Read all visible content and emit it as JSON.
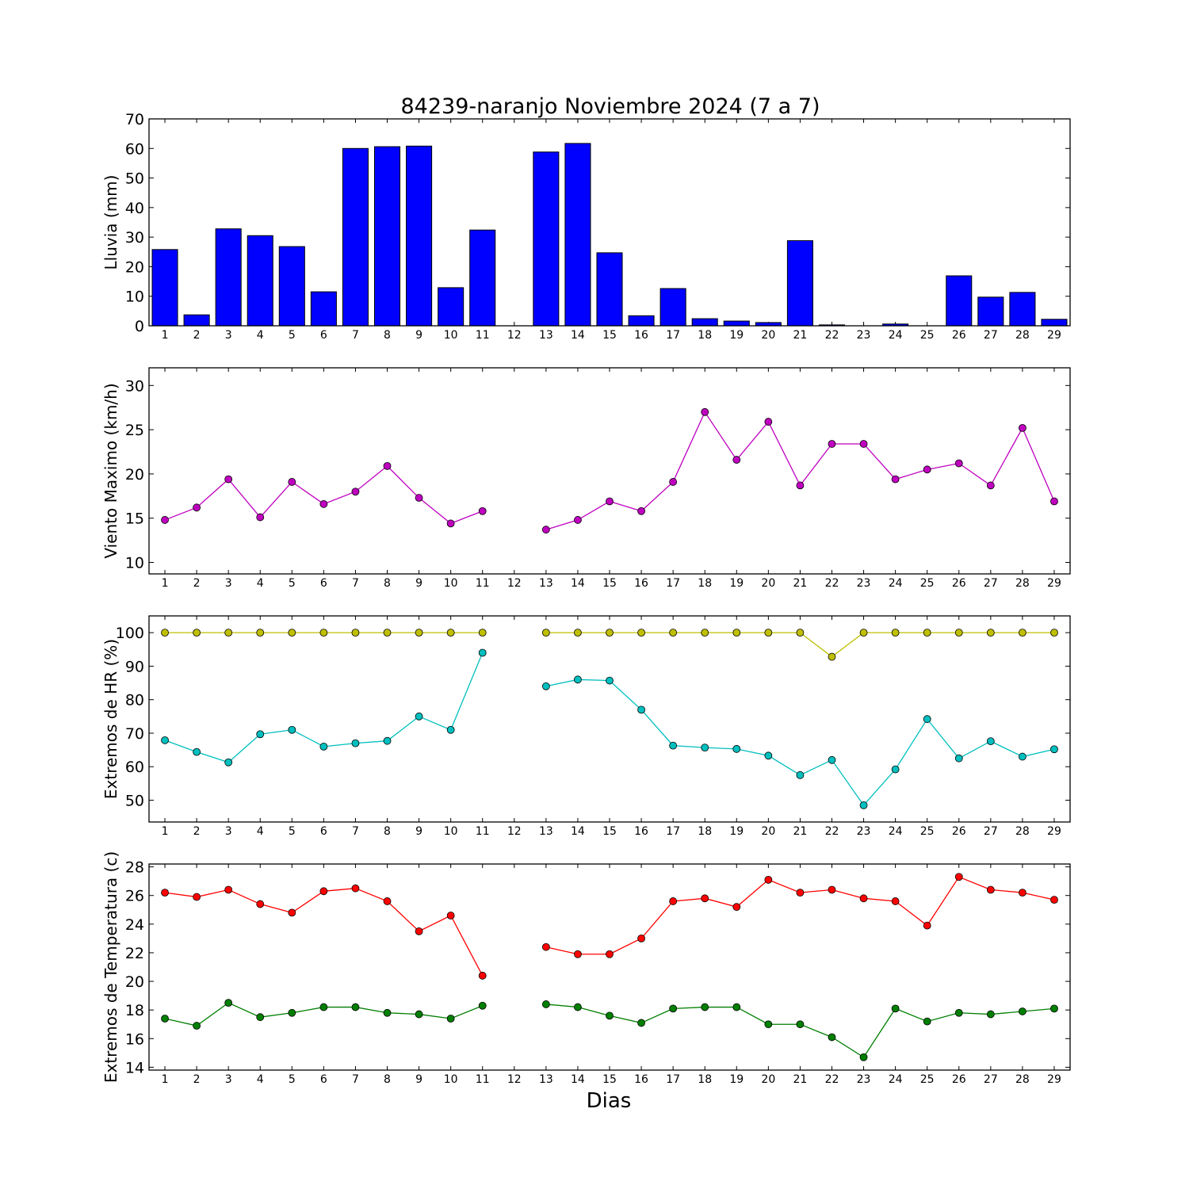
{
  "chart_data": {
    "title": "84239-naranjo Noviembre 2024  (7 a 7)",
    "xlabel": "Dias",
    "days": [
      1,
      2,
      3,
      4,
      5,
      6,
      7,
      8,
      9,
      10,
      11,
      12,
      13,
      14,
      15,
      16,
      17,
      18,
      19,
      20,
      21,
      22,
      23,
      24,
      25,
      26,
      27,
      28,
      29
    ],
    "xlim": [
      0.5,
      29.5
    ],
    "panels": [
      {
        "id": "lluvia",
        "type": "bar",
        "ylabel": "Lluvia (mm)",
        "ylim": [
          0,
          70
        ],
        "yticks": [
          0,
          10,
          20,
          30,
          40,
          50,
          60,
          70
        ],
        "series": [
          {
            "color": "#0000ff",
            "values": [
              25.8,
              3.7,
              32.8,
              30.5,
              26.8,
              11.5,
              60.0,
              60.6,
              60.8,
              12.9,
              32.4,
              null,
              58.8,
              61.7,
              24.7,
              3.4,
              12.6,
              2.4,
              1.6,
              1.1,
              28.8,
              0.3,
              0.0,
              0.6,
              0.0,
              16.9,
              9.7,
              11.3,
              2.2
            ]
          }
        ]
      },
      {
        "id": "viento",
        "type": "line",
        "ylabel": "Viento Maximo (km/h)",
        "ylim": [
          8.7,
          32.0
        ],
        "yticks": [
          10,
          15,
          20,
          25,
          30
        ],
        "series": [
          {
            "color": "#bf00bf",
            "values": [
              14.8,
              16.2,
              19.4,
              15.1,
              19.1,
              16.6,
              18.0,
              20.9,
              17.3,
              14.4,
              15.8,
              null,
              13.7,
              14.8,
              16.9,
              15.8,
              19.1,
              27.0,
              21.6,
              25.9,
              18.7,
              23.4,
              23.4,
              19.4,
              20.5,
              21.2,
              18.7,
              25.2,
              16.9
            ]
          }
        ]
      },
      {
        "id": "hr",
        "type": "line",
        "ylabel": "Extremos de HR (%)",
        "ylim": [
          43.5,
          105.0
        ],
        "yticks": [
          50,
          60,
          70,
          80,
          90,
          100
        ],
        "series": [
          {
            "color": "#bfbf00",
            "values": [
              100,
              100,
              100,
              100,
              100,
              100,
              100,
              100,
              100,
              100,
              100,
              null,
              100,
              100,
              100,
              100,
              100,
              100,
              100,
              100,
              100,
              92.8,
              100,
              100,
              100,
              100,
              100,
              100,
              100
            ]
          },
          {
            "color": "#00bfbf",
            "values": [
              67.9,
              64.4,
              61.3,
              69.7,
              71.0,
              66.0,
              67.0,
              67.7,
              75.0,
              71.0,
              94.0,
              null,
              84.0,
              86.0,
              85.7,
              77.0,
              66.3,
              65.7,
              65.3,
              63.3,
              57.5,
              62.0,
              48.5,
              59.2,
              74.2,
              62.5,
              67.6,
              63.0,
              65.2
            ]
          }
        ]
      },
      {
        "id": "temperatura",
        "type": "line",
        "ylabel": "Extremos de Temperatura (c)",
        "ylim": [
          13.8,
          28.2
        ],
        "yticks": [
          14,
          16,
          18,
          20,
          22,
          24,
          26,
          28
        ],
        "series": [
          {
            "color": "#ff0000",
            "values": [
              26.2,
              25.9,
              26.4,
              25.4,
              24.8,
              26.3,
              26.5,
              25.6,
              23.5,
              24.6,
              20.4,
              null,
              22.4,
              21.9,
              21.9,
              23.0,
              25.6,
              25.8,
              25.2,
              27.1,
              26.2,
              26.4,
              25.8,
              25.6,
              23.9,
              27.3,
              26.4,
              26.2,
              25.7
            ]
          },
          {
            "color": "#007f00",
            "values": [
              17.4,
              16.9,
              18.5,
              17.5,
              17.8,
              18.2,
              18.2,
              17.8,
              17.7,
              17.4,
              18.3,
              null,
              18.4,
              18.2,
              17.6,
              17.1,
              18.1,
              18.2,
              18.2,
              17.0,
              17.0,
              16.1,
              14.7,
              18.1,
              17.2,
              17.8,
              17.7,
              17.9,
              18.1
            ]
          }
        ]
      }
    ]
  }
}
